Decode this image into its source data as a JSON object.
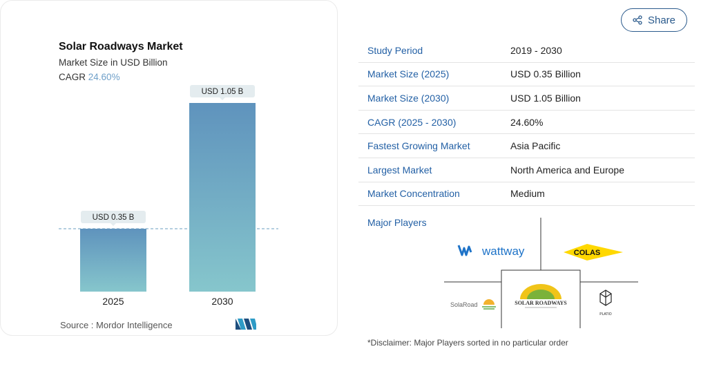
{
  "chart_data": {
    "type": "bar",
    "title": "Solar Roadways Market",
    "subtitle": "Market Size in USD Billion",
    "cagr_label": "CAGR",
    "cagr_value": "24.60%",
    "categories": [
      "2025",
      "2030"
    ],
    "values": [
      0.35,
      1.05
    ],
    "data_labels": [
      "USD 0.35 B",
      "USD 1.05 B"
    ],
    "ylim": [
      0,
      1.05
    ],
    "grid": false,
    "reference_line_value": 0.35,
    "bar_gradient": [
      "#5f93bd",
      "#86c6cc"
    ],
    "source": "Source :  Mordor Intelligence"
  },
  "share": {
    "label": "Share",
    "color": "#2a5a8c"
  },
  "table": [
    {
      "key": "Study Period",
      "value": "2019 - 2030"
    },
    {
      "key": "Market Size (2025)",
      "value": "USD 0.35 Billion"
    },
    {
      "key": "Market Size (2030)",
      "value": "USD 1.05 Billion"
    },
    {
      "key": "CAGR (2025 - 2030)",
      "value": "24.60%"
    },
    {
      "key": "Fastest Growing Market",
      "value": "Asia Pacific"
    },
    {
      "key": "Largest Market",
      "value": "North America and Europe"
    },
    {
      "key": "Market Concentration",
      "value": "Medium"
    }
  ],
  "players": {
    "label": "Major Players",
    "logos": {
      "wattway": "wattway",
      "colas": "COLAS",
      "solaroad": "SolaRoad",
      "solar_roadways": "SOLAR ROADWAYS",
      "platio": "PLATIO"
    }
  },
  "disclaimer": "*Disclaimer: Major Players sorted in no particular order",
  "colors": {
    "accent": "#2360a5",
    "cagr": "#6fa0c9",
    "colas_yellow": "#ffd800",
    "wattway_blue": "#1e73c8"
  }
}
